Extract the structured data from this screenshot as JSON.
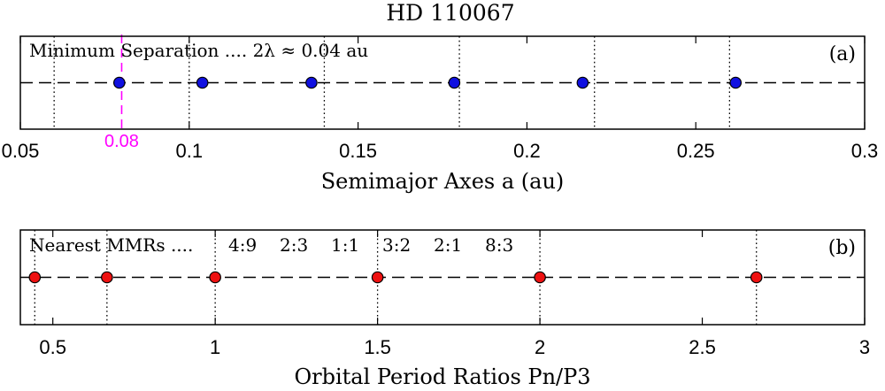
{
  "figure": {
    "title": "HD 110067"
  },
  "chart_data": [
    {
      "type": "scatter",
      "panel_label": "(a)",
      "annotation": "Minimum Separation .... 2λ ≈ 0.04 au",
      "xlabel": "Semimajor Axes a (au)",
      "xlim": [
        0.05,
        0.3
      ],
      "x_ticks": [
        0.05,
        0.1,
        0.15,
        0.2,
        0.25,
        0.3
      ],
      "x_tick_labels": [
        "0.05",
        "0.1",
        "0.15",
        "0.2",
        "0.25",
        "0.3"
      ],
      "marker_color": "#1010e0",
      "points": [
        0.0793,
        0.1039,
        0.1362,
        0.1785,
        0.2165,
        0.2618
      ],
      "dotted_lines": [
        0.06,
        0.1,
        0.14,
        0.18,
        0.22,
        0.26
      ],
      "highlight": {
        "x": 0.08,
        "label": "0.08",
        "color": "#ff00ff"
      }
    },
    {
      "type": "scatter",
      "panel_label": "(b)",
      "annotation": "Nearest MMRs ....",
      "mmr_labels": [
        "4:9",
        "2:3",
        "1:1",
        "3:2",
        "2:1",
        "8:3"
      ],
      "xlabel": "Orbital Period Ratios Pn/P3",
      "xlim": [
        0.4,
        3.0
      ],
      "x_ticks": [
        0.5,
        1,
        1.5,
        2,
        2.5,
        3
      ],
      "x_tick_labels": [
        "0.5",
        "1",
        "1.5",
        "2",
        "2.5",
        "3"
      ],
      "marker_color": "#ee1111",
      "points": [
        0.4444,
        0.6667,
        1.0,
        1.5,
        2.0,
        2.6667
      ],
      "dotted_lines": [
        0.4444,
        0.6667,
        1.0,
        1.5,
        2.0,
        2.6667
      ]
    }
  ]
}
